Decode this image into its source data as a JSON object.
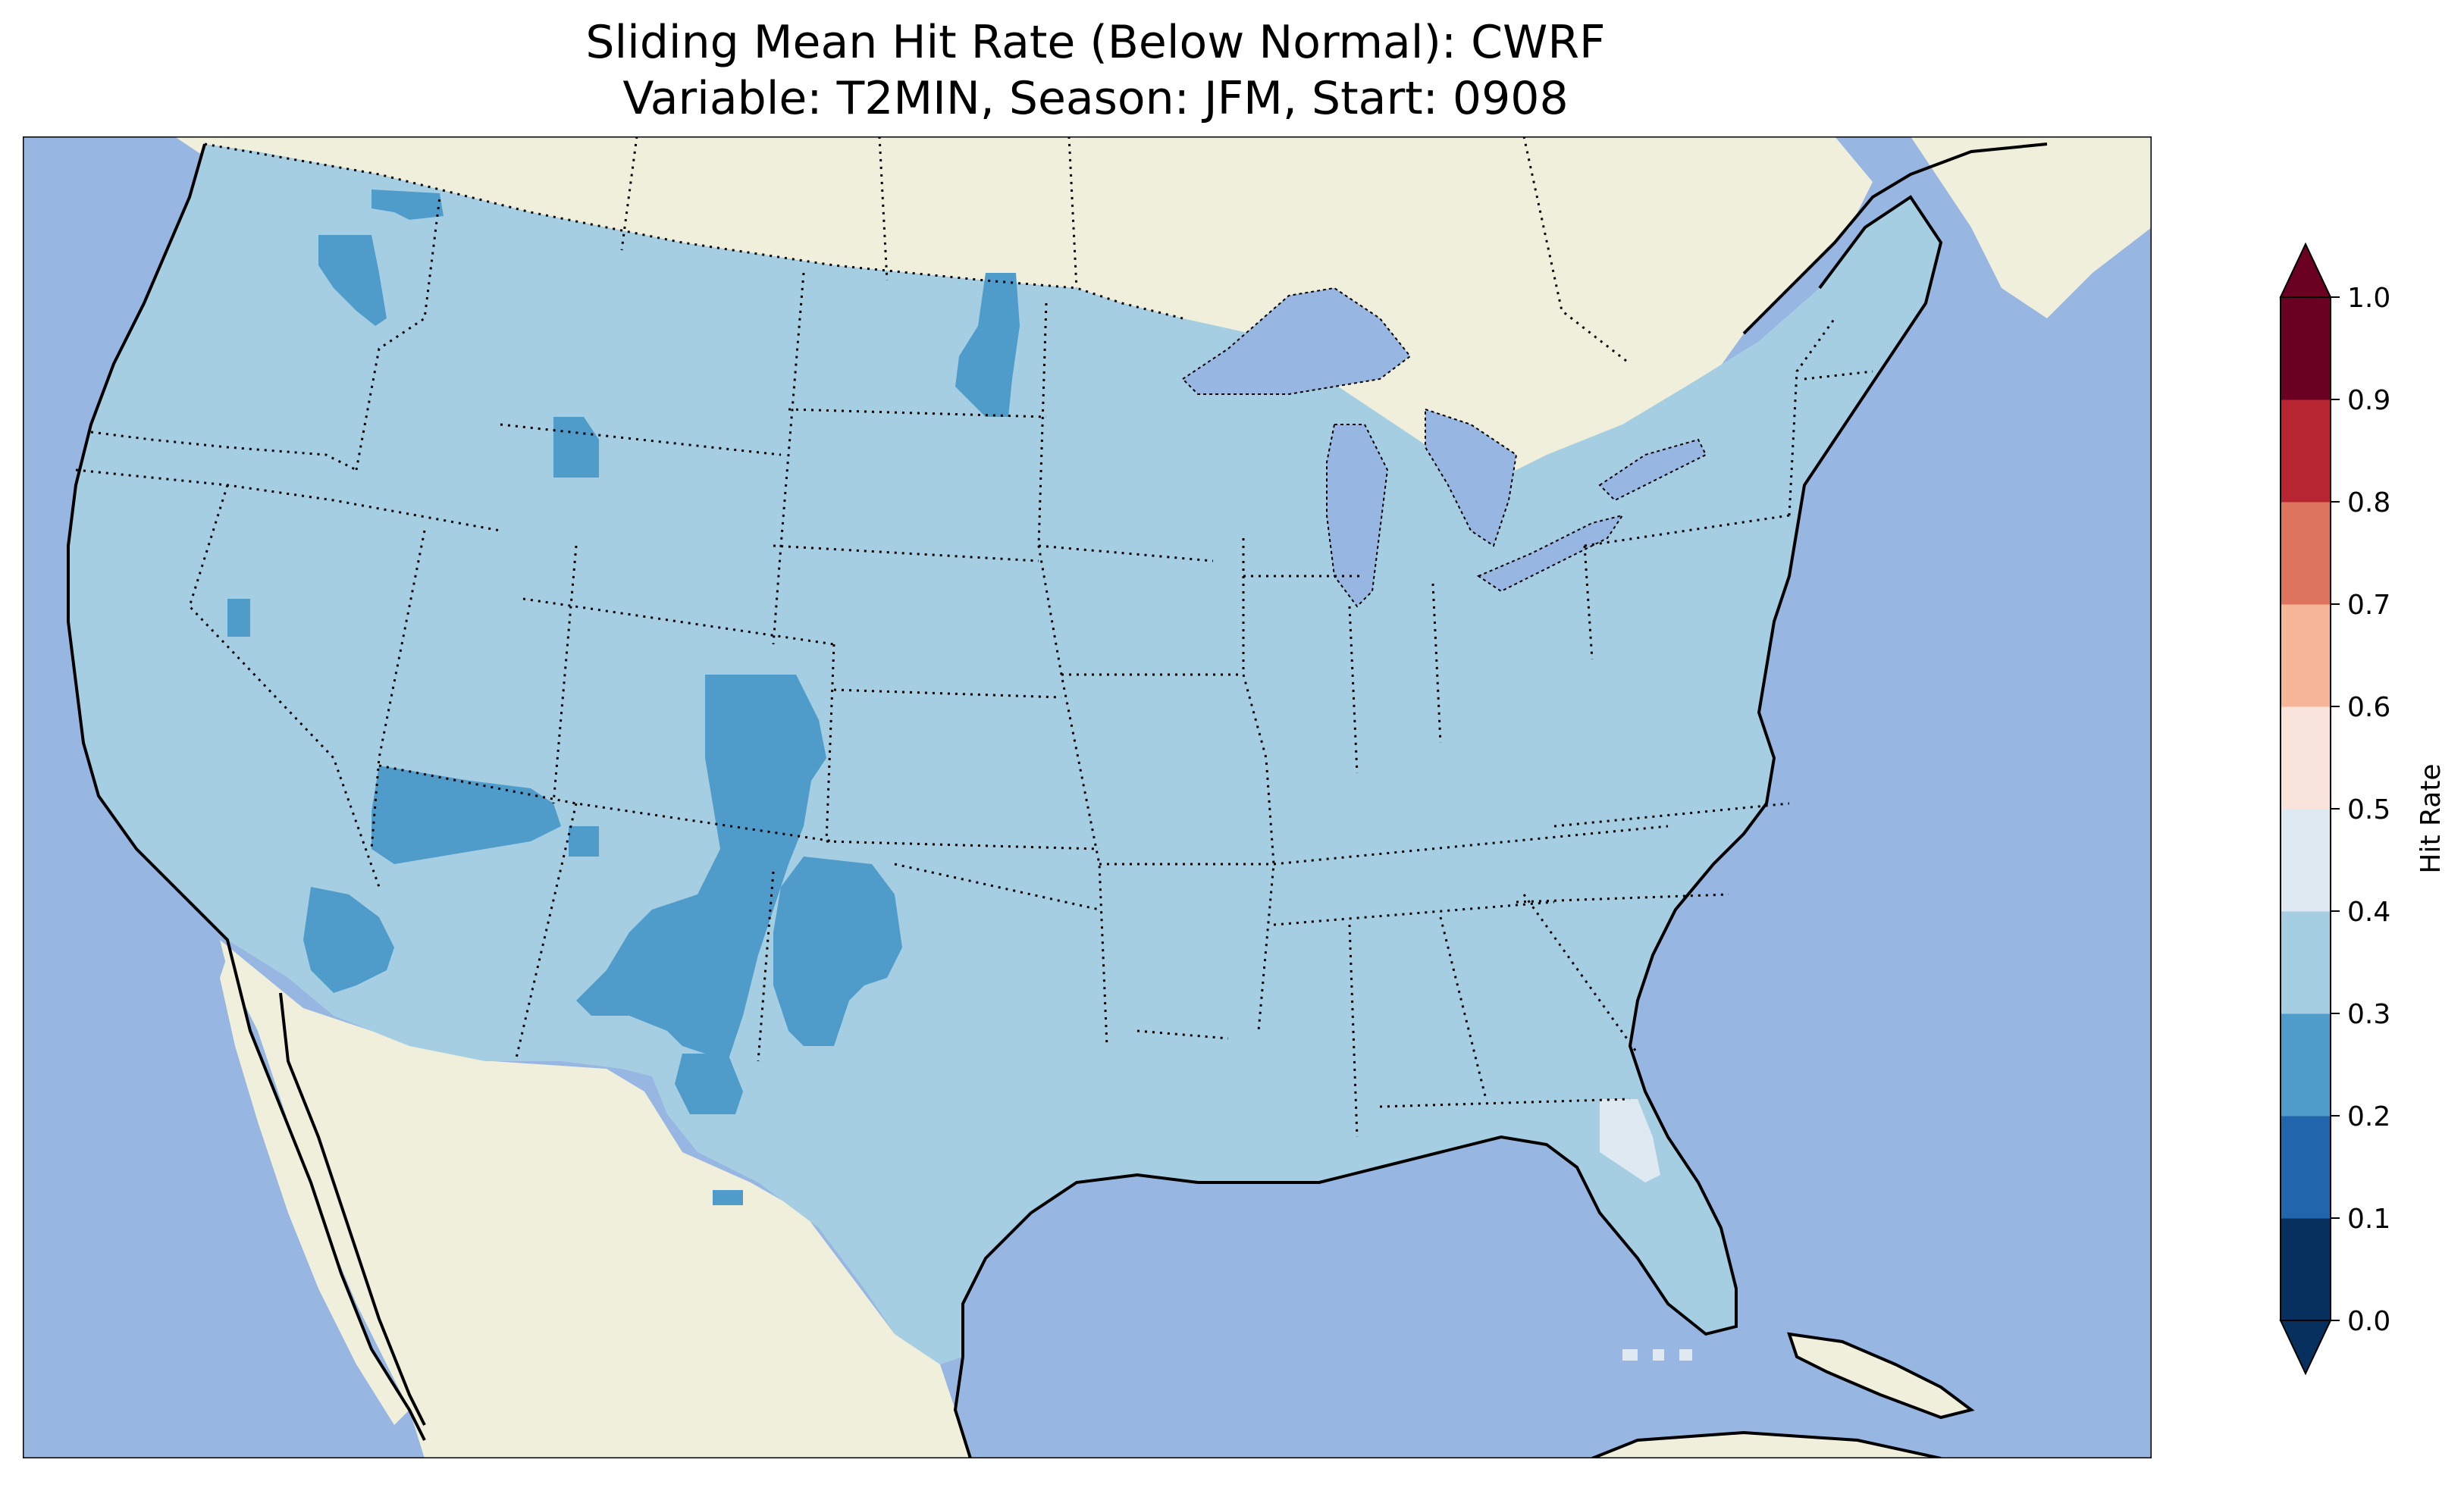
{
  "title": {
    "line1": "Sliding Mean Hit Rate (Below Normal): CWRF",
    "line2": "Variable: T2MIN, Season: JFM, Start: 0908"
  },
  "colors": {
    "ocean": "#97b6e1",
    "land": "#efefdb",
    "domain_fill": "#a6cee3",
    "low_patch": "#4f9bc9",
    "high_patch": "#dfe9f1"
  },
  "colorbar": {
    "label": "Hit Rate",
    "ticks": [
      "0.0",
      "0.1",
      "0.2",
      "0.3",
      "0.4",
      "0.5",
      "0.6",
      "0.7",
      "0.8",
      "0.9",
      "1.0"
    ],
    "bins": [
      {
        "from": 0.0,
        "to": 0.1,
        "color": "#08305e"
      },
      {
        "from": 0.1,
        "to": 0.2,
        "color": "#2166ac"
      },
      {
        "from": 0.2,
        "to": 0.3,
        "color": "#4f9bc9"
      },
      {
        "from": 0.3,
        "to": 0.4,
        "color": "#a6cee3"
      },
      {
        "from": 0.4,
        "to": 0.5,
        "color": "#dfe9f1"
      },
      {
        "from": 0.5,
        "to": 0.6,
        "color": "#f8e4da"
      },
      {
        "from": 0.6,
        "to": 0.7,
        "color": "#f5b597"
      },
      {
        "from": 0.7,
        "to": 0.8,
        "color": "#dd755e"
      },
      {
        "from": 0.8,
        "to": 0.9,
        "color": "#b72532"
      },
      {
        "from": 0.9,
        "to": 1.0,
        "color": "#6a0022"
      }
    ],
    "under_color": "#08305e",
    "over_color": "#6a0022",
    "extend": "both"
  },
  "map": {
    "dominant_value_range": [
      0.3,
      0.4
    ],
    "low_value_regions_range": [
      0.2,
      0.3
    ],
    "high_value_regions_range": [
      0.4,
      0.5
    ]
  }
}
